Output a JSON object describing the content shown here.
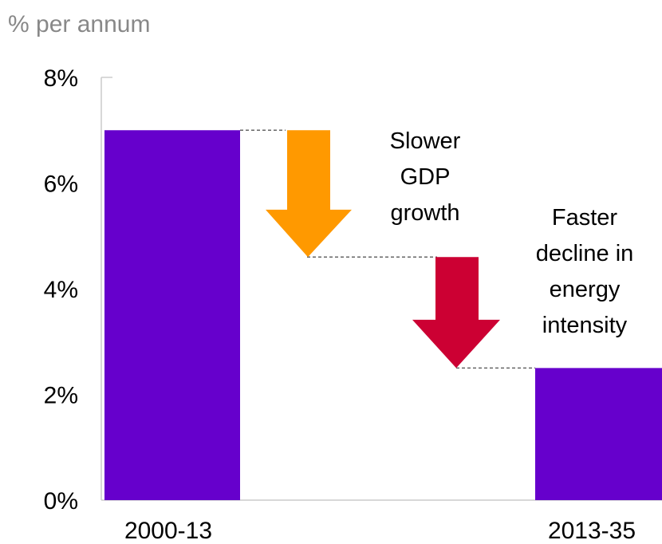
{
  "chart_data": {
    "type": "bar",
    "unit_label": "% per annum",
    "categories": [
      "2000-13",
      "2013-35"
    ],
    "values": [
      7.0,
      2.5
    ],
    "ylim": [
      0,
      8
    ],
    "yticks": [
      "0%",
      "2%",
      "4%",
      "6%",
      "8%"
    ],
    "ytick_values": [
      0,
      2,
      4,
      6,
      8
    ],
    "grid": false,
    "colors": {
      "bar": "#6600cc",
      "gdp_arrow": "#ff9900",
      "intensity_arrow": "#cc0033",
      "connector": "#666666"
    },
    "steps": [
      {
        "label_lines": [
          "Slower",
          "GDP",
          "growth"
        ],
        "from": 7.0,
        "to": 4.6,
        "color_key": "gdp_arrow",
        "icon": "down-arrow-icon"
      },
      {
        "label_lines": [
          "Faster",
          "decline in",
          "energy",
          "intensity"
        ],
        "from": 4.6,
        "to": 2.5,
        "color_key": "intensity_arrow",
        "icon": "down-arrow-icon"
      }
    ]
  }
}
